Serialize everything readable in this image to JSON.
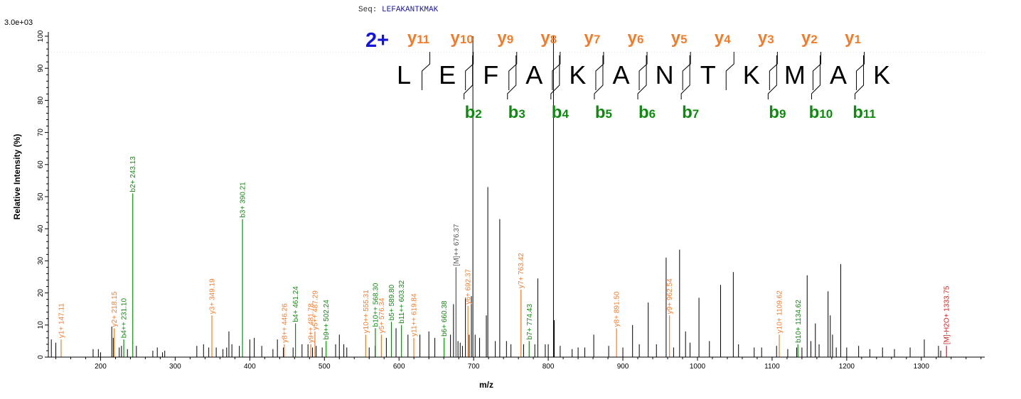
{
  "sequence": {
    "label": "Seq:",
    "value": "LEFAKANTKMAK"
  },
  "chart_data": {
    "type": "bar",
    "title": "",
    "xlabel": "m/z",
    "ylabel": "Relative Intensity (%)",
    "scale_label": "3.0e+03",
    "xlim": [
      130,
      1385
    ],
    "ylim": [
      0,
      100
    ],
    "x_ticks": [
      200,
      300,
      400,
      500,
      600,
      700,
      800,
      900,
      1000,
      1100,
      1200,
      1300
    ],
    "y_ticks": [
      0,
      10,
      20,
      30,
      40,
      50,
      60,
      70,
      80,
      90,
      100
    ],
    "colors": {
      "b": "#118811",
      "y": "#f07c2e",
      "M": "#555555",
      "loss": "#c81e1e",
      "unannotated": "#000000",
      "charge": "#1414dd"
    },
    "annotated_peaks": [
      {
        "mz": 147.11,
        "intensity": 5.5,
        "label": "y1+ 147.11",
        "ion": "y"
      },
      {
        "mz": 218.15,
        "intensity": 9,
        "label": "y2+ 218.15",
        "ion": "y"
      },
      {
        "mz": 231.1,
        "intensity": 5.5,
        "label": "b4++ 231.10",
        "ion": "b"
      },
      {
        "mz": 243.13,
        "intensity": 51,
        "label": "b2+ 243.13",
        "ion": "b"
      },
      {
        "mz": 349.19,
        "intensity": 13,
        "label": "y3+ 349.19",
        "ion": "y"
      },
      {
        "mz": 390.21,
        "intensity": 43,
        "label": "b3+ 390.21",
        "ion": "b"
      },
      {
        "mz": 446.26,
        "intensity": 4,
        "label": "y8++ 446.26",
        "ion": "y"
      },
      {
        "mz": 461.24,
        "intensity": 10.5,
        "label": "b4+ 461.24",
        "ion": "b"
      },
      {
        "mz": 481.78,
        "intensity": 4,
        "label": "y9++ 481.78",
        "ion": "y"
      },
      {
        "mz": 487.29,
        "intensity": 8,
        "label": "y5++ 487.29",
        "ion": "y"
      },
      {
        "mz": 502.24,
        "intensity": 5,
        "label": "b9++ 502.24",
        "ion": "b"
      },
      {
        "mz": 555.31,
        "intensity": 7,
        "label": "y10++ 555.31",
        "ion": "y"
      },
      {
        "mz": 568.3,
        "intensity": 9,
        "label": "b10++ 568.30",
        "ion": "b"
      },
      {
        "mz": 576.34,
        "intensity": 7,
        "label": "y5+ 576.34",
        "ion": "y"
      },
      {
        "mz": 589.8,
        "intensity": 11,
        "label": "b5+ 589.80",
        "ion": "b"
      },
      {
        "mz": 603.32,
        "intensity": 10,
        "label": "b11++ 603.32",
        "ion": "b"
      },
      {
        "mz": 619.84,
        "intensity": 6,
        "label": "y11++ 619.84",
        "ion": "y"
      },
      {
        "mz": 660.38,
        "intensity": 6,
        "label": "b6+ 660.38",
        "ion": "b"
      },
      {
        "mz": 676.37,
        "intensity": 28,
        "label": "[M]++ 676.37",
        "ion": "M"
      },
      {
        "mz": 692.37,
        "intensity": 16,
        "label": "y6+ 692.37",
        "ion": "y"
      },
      {
        "mz": 763.42,
        "intensity": 21,
        "label": "y7+ 763.42",
        "ion": "y"
      },
      {
        "mz": 774.43,
        "intensity": 5,
        "label": "b7+ 774.43",
        "ion": "b"
      },
      {
        "mz": 891.5,
        "intensity": 9,
        "label": "y8+ 891.50",
        "ion": "y"
      },
      {
        "mz": 962.54,
        "intensity": 13,
        "label": "y9+ 962.54",
        "ion": "y"
      },
      {
        "mz": 1109.62,
        "intensity": 7,
        "label": "y10+ 1109.62",
        "ion": "y"
      },
      {
        "mz": 1134.62,
        "intensity": 4,
        "label": "b10+ 1134.62",
        "ion": "b"
      },
      {
        "mz": 1333.75,
        "intensity": 3.5,
        "label": "[M]-H2O+ 1333.75",
        "ion": "loss"
      }
    ],
    "unannotated_peaks": [
      [
        134,
        5.5
      ],
      [
        140,
        4.5
      ],
      [
        190,
        2.5
      ],
      [
        197,
        2.5
      ],
      [
        200,
        1.5
      ],
      [
        215,
        9.5
      ],
      [
        217,
        6
      ],
      [
        225,
        3
      ],
      [
        228,
        3.5
      ],
      [
        236,
        2.5
      ],
      [
        248,
        3.5
      ],
      [
        270,
        2
      ],
      [
        276,
        3
      ],
      [
        283,
        1.5
      ],
      [
        286,
        2
      ],
      [
        329,
        3.5
      ],
      [
        338,
        4
      ],
      [
        345,
        3
      ],
      [
        355,
        3
      ],
      [
        364,
        2.5
      ],
      [
        369,
        3
      ],
      [
        372,
        8
      ],
      [
        376,
        4
      ],
      [
        386,
        3.5
      ],
      [
        400,
        5.5
      ],
      [
        406,
        6
      ],
      [
        416,
        3.5
      ],
      [
        431,
        2.5
      ],
      [
        437,
        5.5
      ],
      [
        445,
        3
      ],
      [
        458,
        3
      ],
      [
        470,
        4
      ],
      [
        478,
        4
      ],
      [
        484,
        3
      ],
      [
        489,
        3.5
      ],
      [
        497,
        3
      ],
      [
        515,
        4
      ],
      [
        520,
        7
      ],
      [
        526,
        4
      ],
      [
        530,
        3
      ],
      [
        560,
        3
      ],
      [
        568,
        3.5
      ],
      [
        583,
        6
      ],
      [
        596,
        9
      ],
      [
        612,
        7
      ],
      [
        628,
        7
      ],
      [
        640,
        8
      ],
      [
        648,
        6
      ],
      [
        669,
        7
      ],
      [
        673,
        16.5
      ],
      [
        679,
        5
      ],
      [
        682,
        4.5
      ],
      [
        685,
        3.5
      ],
      [
        689,
        18.5
      ],
      [
        694,
        7
      ],
      [
        697,
        19
      ],
      [
        699,
        100
      ],
      [
        702,
        7
      ],
      [
        708,
        6
      ],
      [
        717,
        13
      ],
      [
        719,
        53
      ],
      [
        729,
        5
      ],
      [
        735,
        43
      ],
      [
        744,
        5
      ],
      [
        750,
        4
      ],
      [
        767,
        4
      ],
      [
        782,
        4
      ],
      [
        786,
        24.5
      ],
      [
        796,
        4
      ],
      [
        800,
        4
      ],
      [
        807,
        100
      ],
      [
        808,
        11.5
      ],
      [
        816,
        3.5
      ],
      [
        832,
        2.5
      ],
      [
        840,
        3
      ],
      [
        849,
        3
      ],
      [
        861,
        7
      ],
      [
        881,
        3.5
      ],
      [
        900,
        3
      ],
      [
        913,
        10
      ],
      [
        922,
        4
      ],
      [
        934,
        17
      ],
      [
        945,
        4
      ],
      [
        958,
        31
      ],
      [
        968,
        3
      ],
      [
        976,
        33.5
      ],
      [
        984,
        8
      ],
      [
        990,
        4.5
      ],
      [
        1002,
        18.5
      ],
      [
        1016,
        5
      ],
      [
        1031,
        22.5
      ],
      [
        1048,
        26.5
      ],
      [
        1055,
        4
      ],
      [
        1076,
        3
      ],
      [
        1086,
        3
      ],
      [
        1106,
        3.5
      ],
      [
        1121,
        2.5
      ],
      [
        1133,
        3
      ],
      [
        1140,
        3
      ],
      [
        1147,
        25.5
      ],
      [
        1152,
        5
      ],
      [
        1158,
        10.5
      ],
      [
        1163,
        4
      ],
      [
        1175,
        20.5
      ],
      [
        1178,
        13
      ],
      [
        1181,
        7
      ],
      [
        1186,
        3
      ],
      [
        1192,
        29
      ],
      [
        1200,
        3
      ],
      [
        1216,
        3.5
      ],
      [
        1231,
        2.5
      ],
      [
        1248,
        3
      ],
      [
        1264,
        2.5
      ],
      [
        1285,
        3
      ],
      [
        1304,
        5.5
      ],
      [
        1323,
        3.5
      ],
      [
        1326,
        2
      ]
    ],
    "fragment_map": {
      "charge_label": "2+",
      "residues": [
        "L",
        "E",
        "F",
        "A",
        "K",
        "A",
        "N",
        "T",
        "K",
        "M",
        "A",
        "K"
      ],
      "y_labels": [
        {
          "ion": "y",
          "num": "11"
        },
        {
          "ion": "y",
          "num": "10"
        },
        {
          "ion": "y",
          "num": "9"
        },
        {
          "ion": "y",
          "num": "8"
        },
        {
          "ion": "y",
          "num": "7"
        },
        {
          "ion": "y",
          "num": "6"
        },
        {
          "ion": "y",
          "num": "5"
        },
        {
          "ion": "y",
          "num": "4"
        },
        {
          "ion": "y",
          "num": "3"
        },
        {
          "ion": "y",
          "num": "2"
        },
        {
          "ion": "y",
          "num": "1"
        }
      ],
      "b_labels": [
        {
          "ion": "b",
          "num": "2",
          "after": 2
        },
        {
          "ion": "b",
          "num": "3",
          "after": 3
        },
        {
          "ion": "b",
          "num": "4",
          "after": 4
        },
        {
          "ion": "b",
          "num": "5",
          "after": 5
        },
        {
          "ion": "b",
          "num": "6",
          "after": 6
        },
        {
          "ion": "b",
          "num": "7",
          "after": 7
        },
        {
          "ion": "b",
          "num": "9",
          "after": 9
        },
        {
          "ion": "b",
          "num": "10",
          "after": 10
        },
        {
          "ion": "b",
          "num": "11",
          "after": 11
        }
      ]
    }
  }
}
